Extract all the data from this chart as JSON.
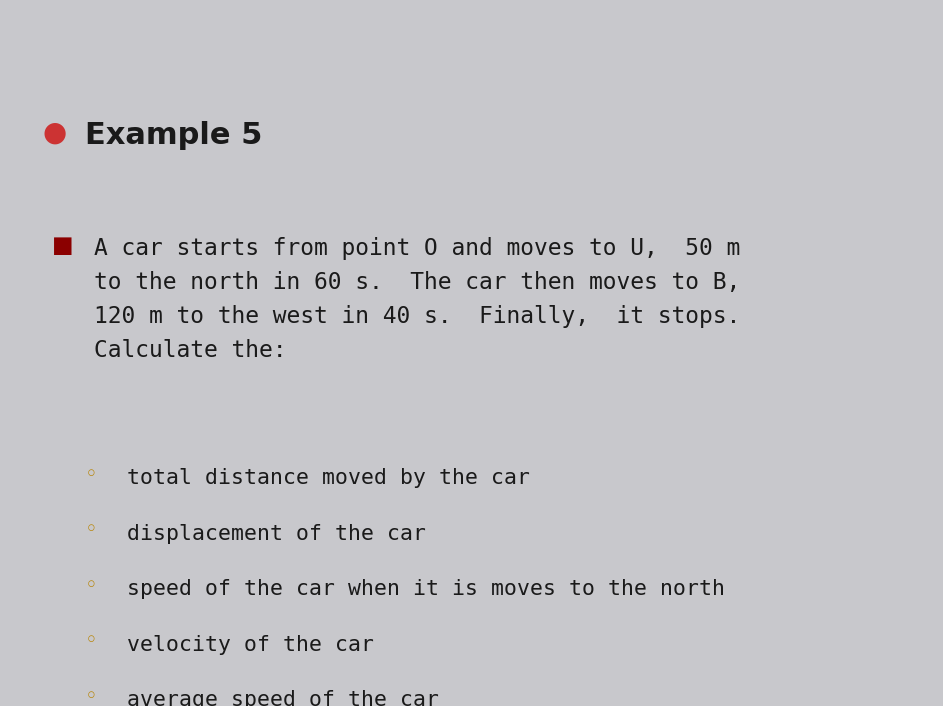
{
  "background_color": "#c8c8cc",
  "title": "Example 5",
  "title_color": "#1a1a1a",
  "title_bullet_color": "#cc3333",
  "title_fontsize": 22,
  "title_bold": true,
  "sub_bullet_color": "#8b0000",
  "sub_bullet_char": "■",
  "main_paragraph": "A car starts from point O and moves to U,  50 m\nto the north in 60 s.  The car then moves to B,\n120 m to the west in 40 s.  Finally,  it stops.\nCalculate the:",
  "paragraph_color": "#1a1a1a",
  "paragraph_fontsize": 16.5,
  "bullet_items": [
    "total distance moved by the car",
    "displacement of the car",
    "speed of the car when it is moves to the north",
    "velocity of the car",
    "average speed of the car"
  ],
  "bullet_fontsize": 15.5,
  "bullet_color": "#1a1a1a",
  "small_bullet_color": "#b8860b",
  "small_bullet_char": "◦"
}
